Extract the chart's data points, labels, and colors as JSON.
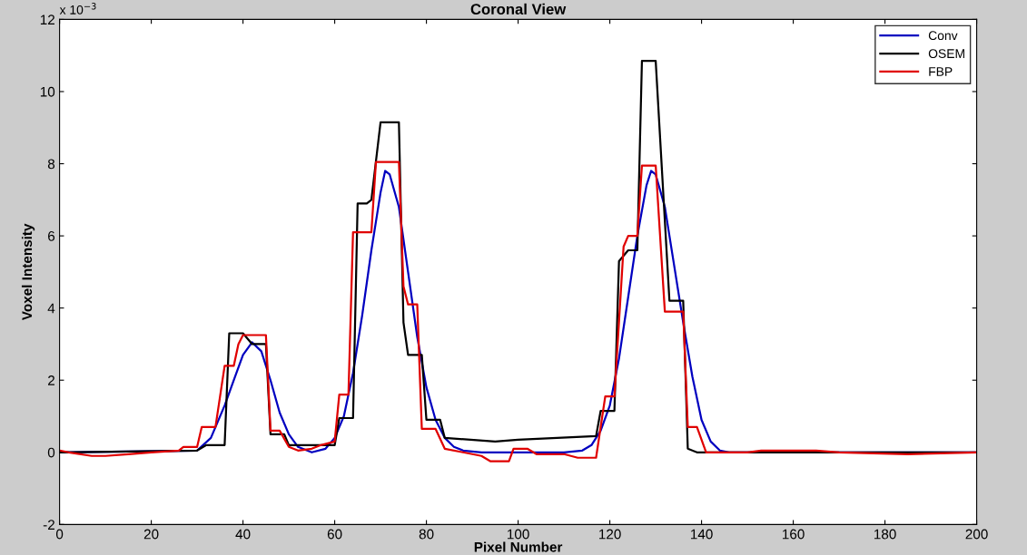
{
  "chart_data": {
    "type": "line",
    "title": "Coronal View",
    "xlabel": "Pixel Number",
    "ylabel": "Voxel Intensity",
    "annotations": [
      "x 10$^{−3}$"
    ],
    "xlim": [
      0,
      200
    ],
    "xticks": [
      0,
      20,
      40,
      60,
      80,
      100,
      120,
      140,
      160,
      180,
      200
    ],
    "ylim": [
      -2,
      12
    ],
    "yticks": [
      -2,
      0,
      2,
      4,
      6,
      8,
      10,
      12
    ],
    "grid": false,
    "legend": "top right",
    "marker": "none",
    "line_style": "solid",
    "series": [
      {
        "name": "Conv",
        "color": "#0000c0",
        "x": [
          0,
          30,
          33,
          36,
          38,
          40,
          42,
          44,
          46,
          48,
          50,
          52,
          55,
          58,
          60,
          62,
          64,
          66,
          68,
          70,
          71,
          72,
          74,
          76,
          78,
          80,
          82,
          84,
          86,
          88,
          92,
          110,
          114,
          116,
          118,
          120,
          122,
          124,
          126,
          128,
          129,
          130,
          132,
          134,
          136,
          138,
          140,
          142,
          144,
          146,
          200
        ],
        "values": [
          0,
          0.05,
          0.4,
          1.3,
          2.0,
          2.7,
          3.05,
          2.8,
          2.0,
          1.1,
          0.5,
          0.15,
          0.0,
          0.1,
          0.4,
          1.0,
          2.2,
          3.8,
          5.6,
          7.2,
          7.8,
          7.7,
          6.8,
          5.0,
          3.2,
          1.8,
          0.9,
          0.4,
          0.15,
          0.05,
          0.0,
          0.0,
          0.05,
          0.2,
          0.6,
          1.3,
          2.6,
          4.3,
          6.0,
          7.4,
          7.8,
          7.7,
          6.8,
          5.2,
          3.6,
          2.1,
          0.9,
          0.3,
          0.05,
          0,
          0
        ]
      },
      {
        "name": "OSEM",
        "color": "#000000",
        "x": [
          0,
          30,
          32,
          36,
          37,
          40,
          42,
          45,
          46,
          49,
          50,
          60,
          61,
          64,
          65,
          67,
          68,
          70,
          74,
          75,
          76,
          79,
          80,
          83,
          84,
          95,
          100,
          117,
          118,
          121,
          122,
          124,
          126,
          127,
          130,
          133,
          136,
          137,
          139,
          160,
          170,
          200
        ],
        "values": [
          0,
          0.05,
          0.2,
          0.2,
          3.3,
          3.3,
          3.0,
          3.0,
          0.5,
          0.5,
          0.2,
          0.2,
          0.95,
          0.95,
          6.9,
          6.9,
          7.0,
          9.15,
          9.15,
          3.6,
          2.7,
          2.7,
          0.9,
          0.9,
          0.4,
          0.3,
          0.35,
          0.45,
          1.15,
          1.15,
          5.3,
          5.6,
          5.6,
          10.85,
          10.85,
          4.2,
          4.2,
          0.1,
          0.0,
          0.0,
          0.0,
          0
        ]
      },
      {
        "name": "FBP",
        "color": "#e00000",
        "x": [
          0,
          2,
          7,
          10,
          15,
          20,
          26,
          27,
          30,
          31,
          34,
          36,
          38,
          39,
          40,
          45,
          46,
          48,
          50,
          52,
          55,
          57,
          60,
          61,
          63,
          64,
          68,
          69,
          74,
          75,
          76,
          78,
          79,
          82,
          84,
          88,
          92,
          94,
          98,
          99,
          102,
          104,
          110,
          113,
          117,
          119,
          121,
          123,
          124,
          126,
          127,
          130,
          132,
          136,
          137,
          139,
          141,
          150,
          153,
          165,
          170,
          185,
          200
        ],
        "values": [
          0.05,
          0,
          -0.1,
          -0.1,
          -0.05,
          0,
          0.05,
          0.15,
          0.15,
          0.7,
          0.7,
          2.4,
          2.4,
          3.0,
          3.25,
          3.25,
          0.6,
          0.6,
          0.15,
          0.05,
          0.1,
          0.2,
          0.3,
          1.6,
          1.6,
          6.1,
          6.1,
          8.05,
          8.05,
          4.6,
          4.1,
          4.1,
          0.65,
          0.65,
          0.1,
          0.0,
          -0.1,
          -0.25,
          -0.25,
          0.1,
          0.1,
          -0.05,
          -0.05,
          -0.15,
          -0.15,
          1.55,
          1.55,
          5.7,
          6.0,
          6.0,
          7.95,
          7.95,
          3.9,
          3.9,
          0.7,
          0.7,
          0,
          0,
          0.05,
          0.05,
          0,
          -0.05,
          0
        ]
      }
    ]
  }
}
